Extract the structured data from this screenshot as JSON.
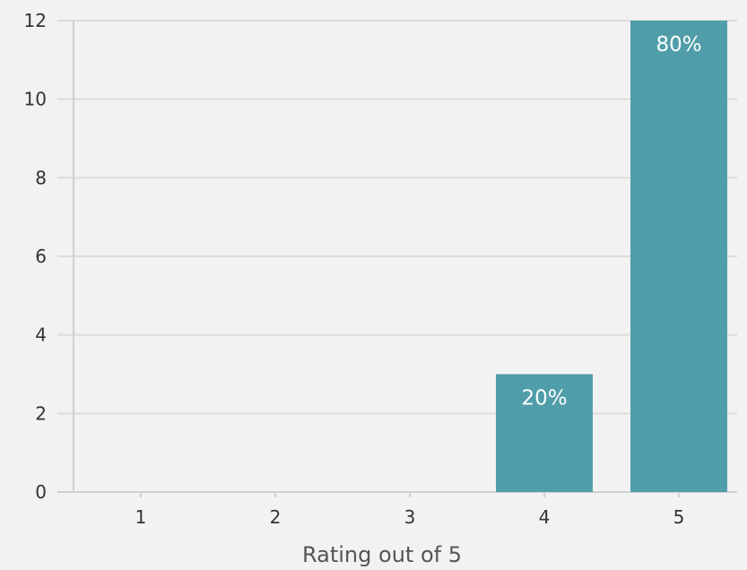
{
  "chart_data": {
    "type": "bar",
    "categories": [
      "1",
      "2",
      "3",
      "4",
      "5"
    ],
    "values": [
      0,
      0,
      0,
      3,
      12
    ],
    "data_labels": [
      "",
      "",
      "",
      "20%",
      "80%"
    ],
    "title": "",
    "xlabel": "Rating out of 5",
    "ylabel": "",
    "ylim": [
      0,
      12
    ],
    "yticks": [
      0,
      2,
      4,
      6,
      8,
      10,
      12
    ],
    "grid": true,
    "bar_color": "#509ea9",
    "label_color": "#ffffff"
  }
}
